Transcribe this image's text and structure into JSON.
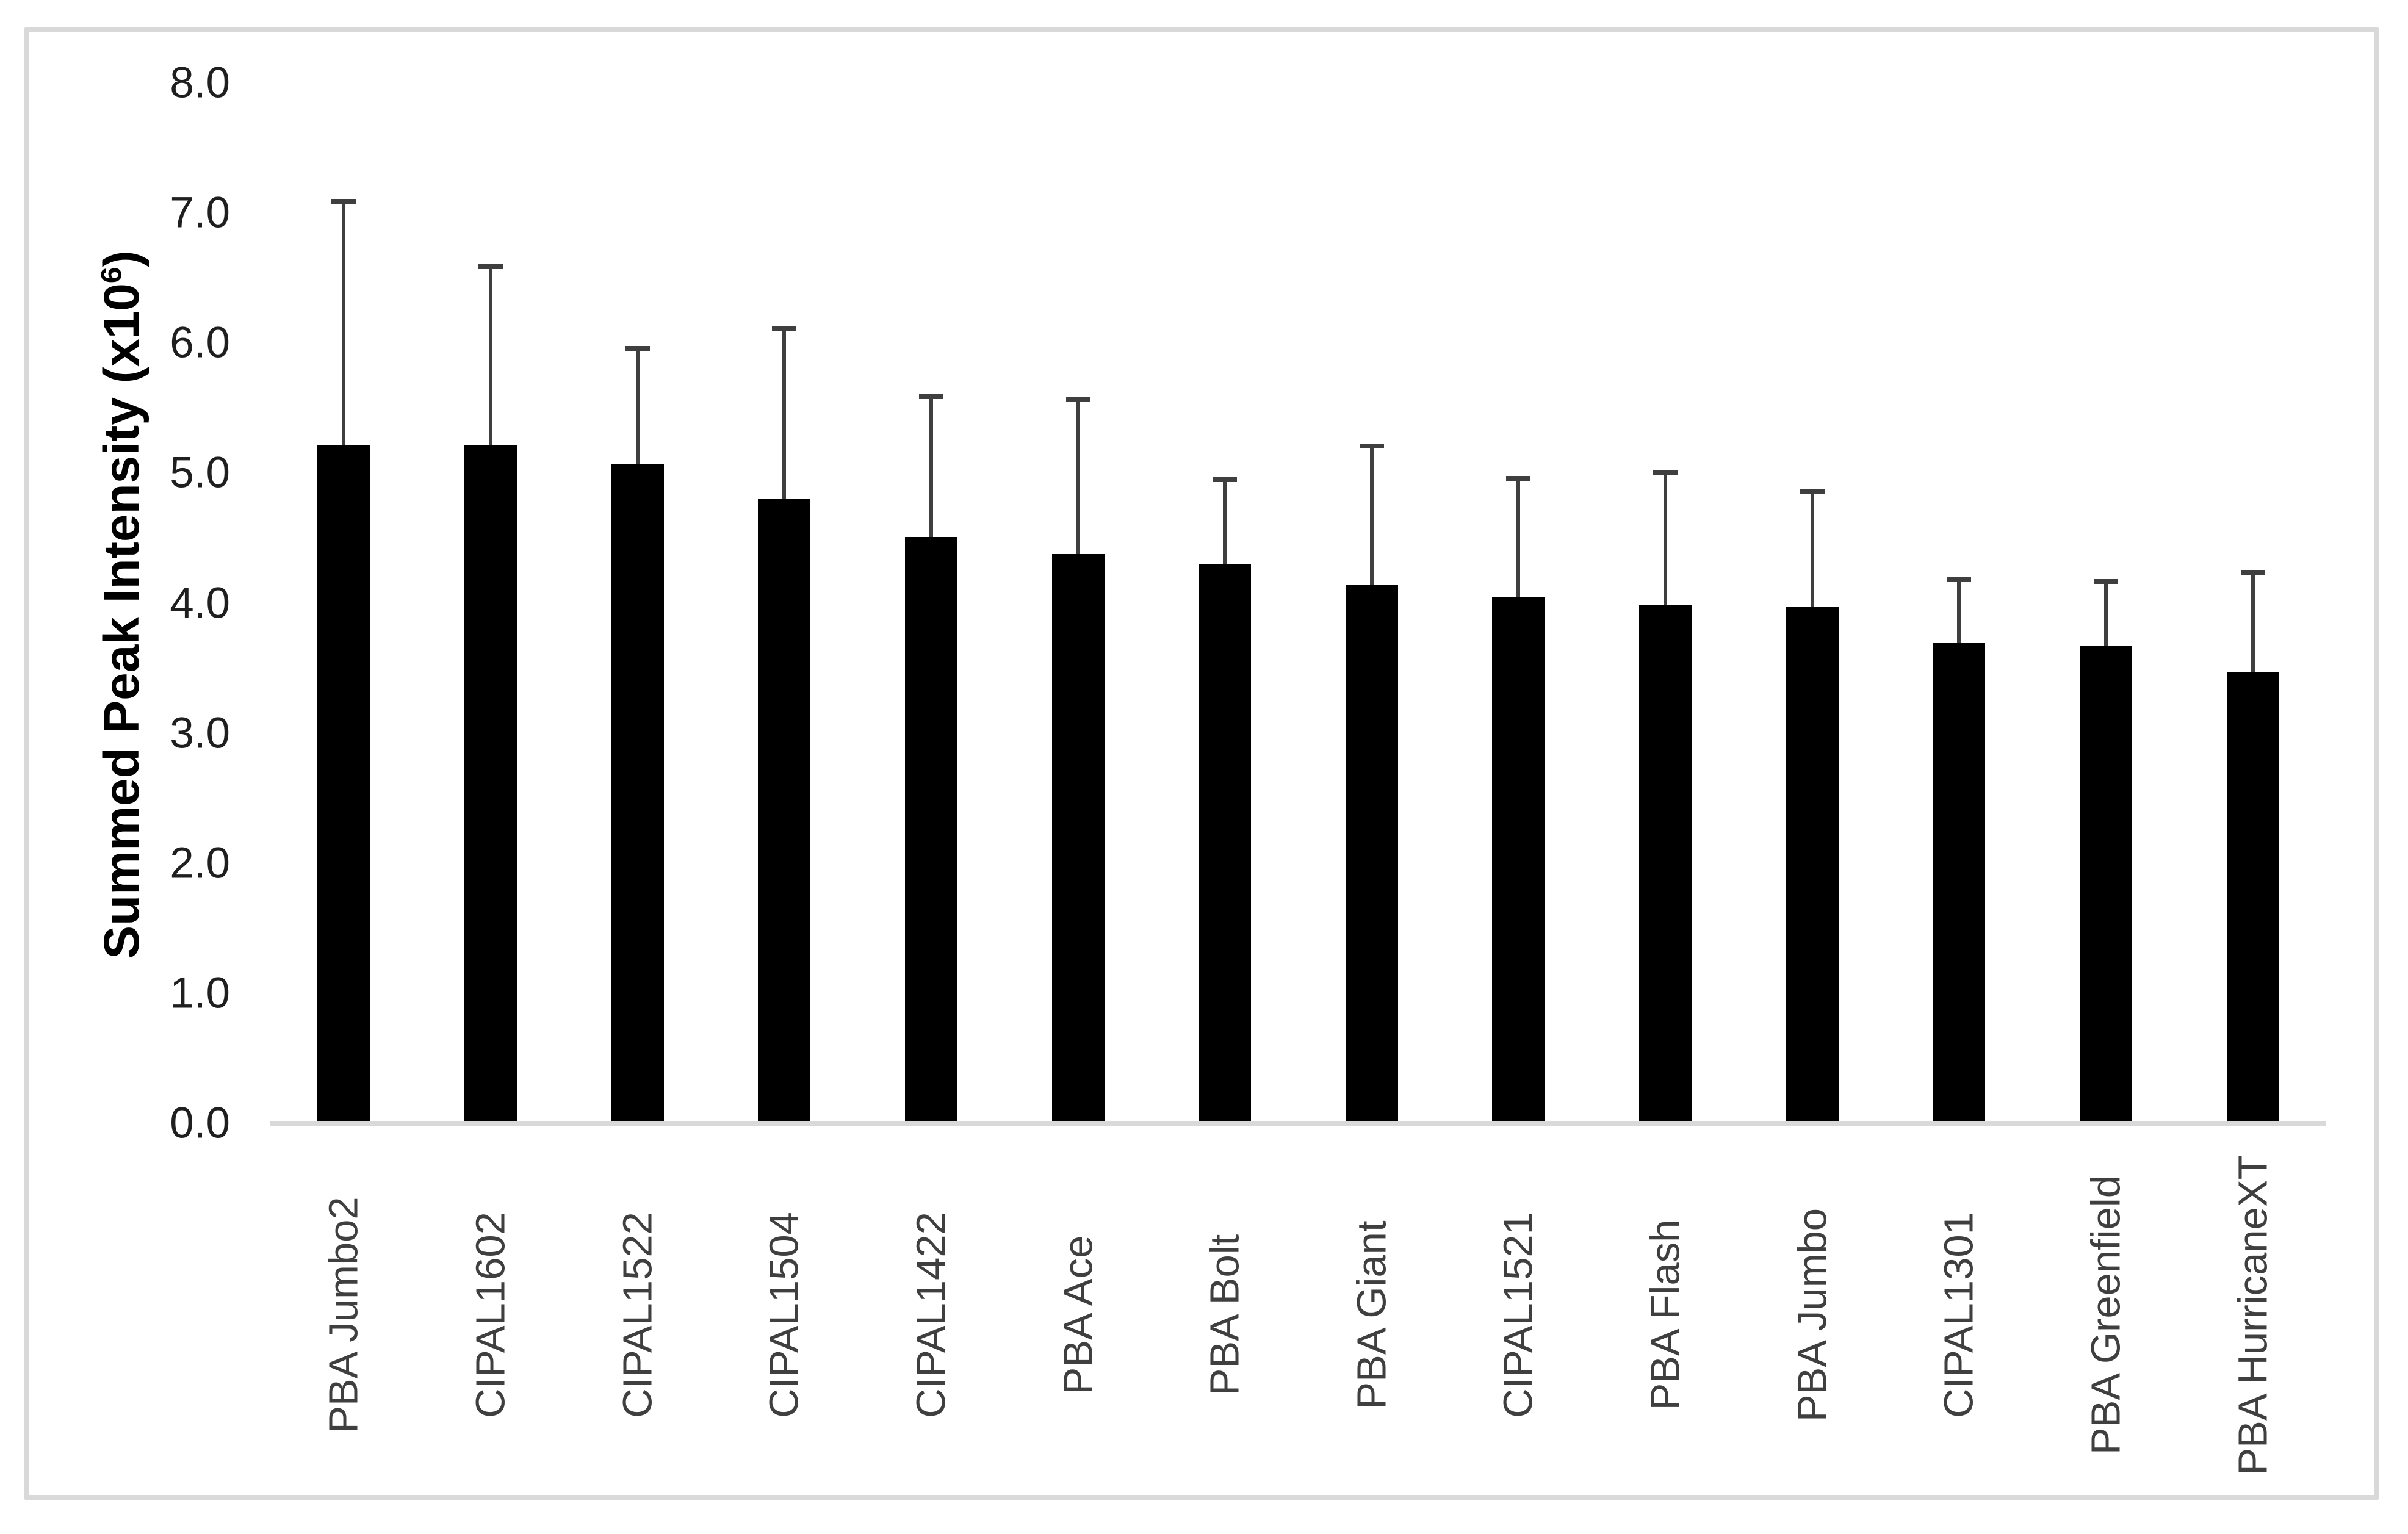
{
  "chart_data": {
    "type": "bar",
    "title": "",
    "xlabel": "",
    "ylabel": "Summed Peak Intensity (x10⁶)",
    "ylabel_parts": {
      "prefix": "Summed Peak Intensity (x10",
      "superscript": "6",
      "suffix": ")"
    },
    "categories": [
      "PBA Jumbo2",
      "CIPAL1602",
      "CIPAL1522",
      "CIPAL1504",
      "CIPAL1422",
      "PBA Ace",
      "PBA Bolt",
      "PBA Giant",
      "CIPAL1521",
      "PBA Flash",
      "PBA Jumbo",
      "CIPAL1301",
      "PBA Greenfield",
      "PBA HurricaneXT"
    ],
    "values": [
      5.2,
      5.2,
      5.05,
      4.78,
      4.49,
      4.36,
      4.28,
      4.12,
      4.03,
      3.97,
      3.95,
      3.68,
      3.65,
      3.45
    ],
    "error_plus": [
      1.87,
      1.37,
      0.89,
      1.31,
      1.08,
      1.19,
      0.65,
      1.07,
      0.91,
      1.02,
      0.89,
      0.48,
      0.5,
      0.77
    ],
    "ylim": [
      0,
      8
    ],
    "ytick_labels": [
      "0.0",
      "1.0",
      "2.0",
      "3.0",
      "4.0",
      "5.0",
      "6.0",
      "7.0",
      "8.0"
    ],
    "grid": false,
    "legend": false,
    "bar_color": "#000000",
    "error_bar_color": "#3f3f3f",
    "axis_line_color": "#d9d9d9",
    "border_color": "#d9d9d9",
    "tick_label_color": "#1f1f1f",
    "category_label_color": "#3f3f3f"
  }
}
